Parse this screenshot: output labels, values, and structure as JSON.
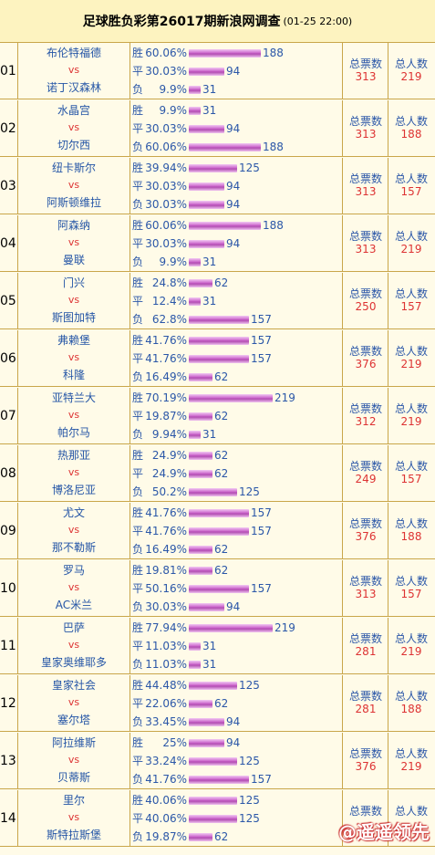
{
  "header": {
    "title": "足球胜负彩第26017期新浪网调查",
    "subtitle": "(01-25 22:00)"
  },
  "labels": {
    "win": "胜",
    "draw": "平",
    "loss": "负",
    "vs": "vs",
    "total_votes": "总票数",
    "total_people": "总人数"
  },
  "colors": {
    "bar": "#cc66cc",
    "team": "#2455a6",
    "red": "#dd3333",
    "border": "#c9a64a"
  },
  "matches": [
    {
      "no": "01",
      "home": "布伦特福德",
      "away": "诺丁汉森林",
      "win_pct": "60.06%",
      "win": 188,
      "draw_pct": "30.03%",
      "draw": 94,
      "loss_pct": "9.9%",
      "loss": 31,
      "votes": "313",
      "people": "219"
    },
    {
      "no": "02",
      "home": "水晶宫",
      "away": "切尔西",
      "win_pct": "9.9%",
      "win": 31,
      "draw_pct": "30.03%",
      "draw": 94,
      "loss_pct": "60.06%",
      "loss": 188,
      "votes": "313",
      "people": "188"
    },
    {
      "no": "03",
      "home": "纽卡斯尔",
      "away": "阿斯顿维拉",
      "win_pct": "39.94%",
      "win": 125,
      "draw_pct": "30.03%",
      "draw": 94,
      "loss_pct": "30.03%",
      "loss": 94,
      "votes": "313",
      "people": "157"
    },
    {
      "no": "04",
      "home": "阿森纳",
      "away": "曼联",
      "win_pct": "60.06%",
      "win": 188,
      "draw_pct": "30.03%",
      "draw": 94,
      "loss_pct": "9.9%",
      "loss": 31,
      "votes": "313",
      "people": "219"
    },
    {
      "no": "05",
      "home": "门兴",
      "away": "斯图加特",
      "win_pct": "24.8%",
      "win": 62,
      "draw_pct": "12.4%",
      "draw": 31,
      "loss_pct": "62.8%",
      "loss": 157,
      "votes": "250",
      "people": "157"
    },
    {
      "no": "06",
      "home": "弗赖堡",
      "away": "科隆",
      "win_pct": "41.76%",
      "win": 157,
      "draw_pct": "41.76%",
      "draw": 157,
      "loss_pct": "16.49%",
      "loss": 62,
      "votes": "376",
      "people": "219"
    },
    {
      "no": "07",
      "home": "亚特兰大",
      "away": "帕尔马",
      "win_pct": "70.19%",
      "win": 219,
      "draw_pct": "19.87%",
      "draw": 62,
      "loss_pct": "9.94%",
      "loss": 31,
      "votes": "312",
      "people": "219"
    },
    {
      "no": "08",
      "home": "热那亚",
      "away": "博洛尼亚",
      "win_pct": "24.9%",
      "win": 62,
      "draw_pct": "24.9%",
      "draw": 62,
      "loss_pct": "50.2%",
      "loss": 125,
      "votes": "249",
      "people": "157"
    },
    {
      "no": "09",
      "home": "尤文",
      "away": "那不勒斯",
      "win_pct": "41.76%",
      "win": 157,
      "draw_pct": "41.76%",
      "draw": 157,
      "loss_pct": "16.49%",
      "loss": 62,
      "votes": "376",
      "people": "188"
    },
    {
      "no": "10",
      "home": "罗马",
      "away": "AC米兰",
      "win_pct": "19.81%",
      "win": 62,
      "draw_pct": "50.16%",
      "draw": 157,
      "loss_pct": "30.03%",
      "loss": 94,
      "votes": "313",
      "people": "157"
    },
    {
      "no": "11",
      "home": "巴萨",
      "away": "皇家奥维耶多",
      "win_pct": "77.94%",
      "win": 219,
      "draw_pct": "11.03%",
      "draw": 31,
      "loss_pct": "11.03%",
      "loss": 31,
      "votes": "281",
      "people": "219"
    },
    {
      "no": "12",
      "home": "皇家社会",
      "away": "塞尔塔",
      "win_pct": "44.48%",
      "win": 125,
      "draw_pct": "22.06%",
      "draw": 62,
      "loss_pct": "33.45%",
      "loss": 94,
      "votes": "281",
      "people": "188"
    },
    {
      "no": "13",
      "home": "阿拉维斯",
      "away": "贝蒂斯",
      "win_pct": "25%",
      "win": 94,
      "draw_pct": "33.24%",
      "draw": 125,
      "loss_pct": "41.76%",
      "loss": 157,
      "votes": "376",
      "people": "219"
    },
    {
      "no": "14",
      "home": "里尔",
      "away": "斯特拉斯堡",
      "win_pct": "40.06%",
      "win": 125,
      "draw_pct": "40.06%",
      "draw": 125,
      "loss_pct": "19.87%",
      "loss": 62,
      "votes": "",
      "people": ""
    }
  ],
  "watermark": "@遥遥领先"
}
